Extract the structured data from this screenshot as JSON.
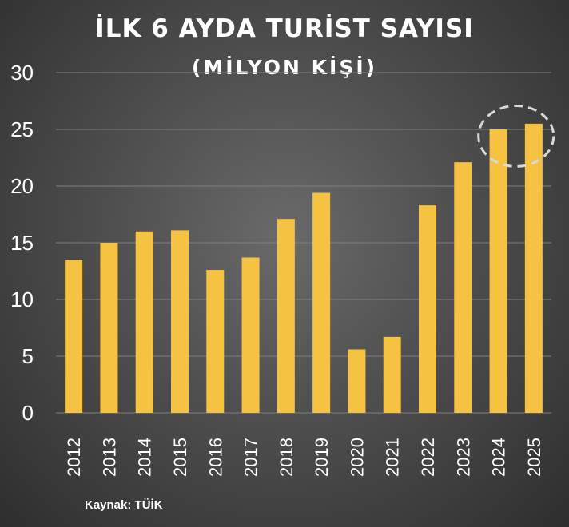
{
  "title": "İLK 6 AYDA TURİST SAYISI",
  "subtitle": "(MİLYON KİŞİ)",
  "source": "Kaynak: TÜİK",
  "colors": {
    "bar": "#f6c242",
    "gridline": "#7f7f7f",
    "text": "#ffffff",
    "highlight_ellipse": "#d9d9d9"
  },
  "chart_data": {
    "type": "bar",
    "title": "İLK 6 AYDA TURİST SAYISI",
    "subtitle": "(MİLYON KİŞİ)",
    "categories": [
      "2012",
      "2013",
      "2014",
      "2015",
      "2016",
      "2017",
      "2018",
      "2019",
      "2020",
      "2021",
      "2022",
      "2023",
      "2024",
      "2025"
    ],
    "values": [
      13.5,
      15.0,
      16.0,
      16.1,
      12.6,
      13.7,
      17.1,
      19.4,
      5.6,
      6.7,
      18.3,
      22.1,
      25.0,
      25.5
    ],
    "ylim": [
      0,
      30
    ],
    "yticks": [
      0,
      5,
      10,
      15,
      20,
      25,
      30
    ],
    "grid": true,
    "highlight": [
      "2024",
      "2025"
    ]
  }
}
